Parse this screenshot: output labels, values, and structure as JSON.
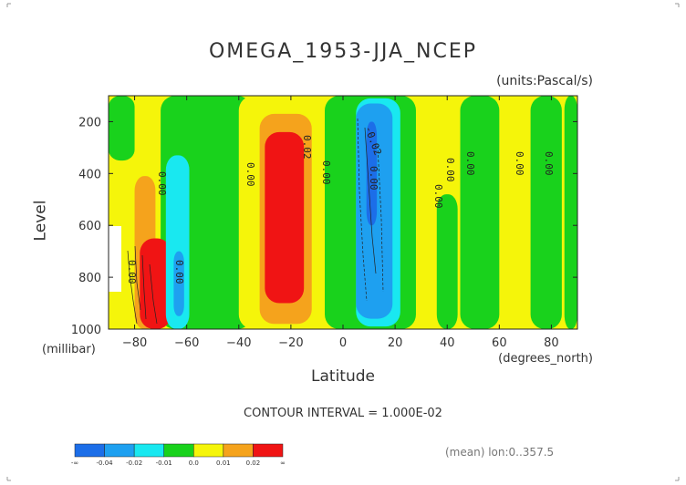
{
  "title": "OMEGA_1953-JJA_NCEP",
  "units_label": "(units:Pascal/s)",
  "contour_interval": "CONTOUR INTERVAL = 1.000E-02",
  "meta": "(mean) lon:0..357.5",
  "colors": {
    "n04": "#1c6ee8",
    "n02": "#1ea0f0",
    "n01": "#19e8f0",
    "zero": "#19d21c",
    "p00": "#f5f50a",
    "p01": "#f5a31c",
    "p02": "#f01414"
  },
  "colorbar": {
    "labels": [
      "-∞",
      "-0.04",
      "-0.02",
      "-0.01",
      "0.0",
      "0.01",
      "0.02",
      "∞"
    ],
    "color_keys": [
      "n04",
      "n02",
      "n01",
      "zero",
      "p00",
      "p01",
      "p02"
    ]
  },
  "contour_labels": [
    "0.00",
    "0.00",
    "0.00",
    "0.02",
    "0.00",
    "-0.02",
    "0.00",
    "0.00",
    "0.00",
    "0.00",
    "0.00",
    "0.00",
    "0.00"
  ],
  "chart_data": {
    "type": "heatmap",
    "title": "OMEGA_1953-JJA_NCEP",
    "units": "(units:Pascal/s)",
    "xlabel": "Latitude",
    "xlabel_unit": "(degrees_north)",
    "ylabel": "Level",
    "ylabel_unit": "(millibar)",
    "xlim": [
      -90,
      90
    ],
    "ylim": [
      1000,
      100
    ],
    "xticks": [
      -80,
      -60,
      -40,
      -20,
      0,
      20,
      40,
      60,
      80
    ],
    "yticks": [
      200,
      400,
      600,
      800,
      1000
    ],
    "background_level": "p00",
    "regions": [
      {
        "level": "zero",
        "lat_min": -90,
        "lat_max": -80,
        "p_top": 100,
        "p_bottom": 350
      },
      {
        "level": "zero",
        "lat_min": -70,
        "lat_max": -35,
        "p_top": 100,
        "p_bottom": 1000
      },
      {
        "level": "zero",
        "lat_min": -7,
        "lat_max": 28,
        "p_top": 100,
        "p_bottom": 1000
      },
      {
        "level": "zero",
        "lat_min": 45,
        "lat_max": 60,
        "p_top": 100,
        "p_bottom": 1000
      },
      {
        "level": "zero",
        "lat_min": 72,
        "lat_max": 84,
        "p_top": 100,
        "p_bottom": 1000
      },
      {
        "level": "zero",
        "lat_min": 85,
        "lat_max": 90,
        "p_top": 100,
        "p_bottom": 1000
      },
      {
        "level": "zero",
        "lat_min": 36,
        "lat_max": 44,
        "p_top": 480,
        "p_bottom": 1000
      },
      {
        "level": "p00",
        "lat_min": -40,
        "lat_max": -8,
        "p_top": 100,
        "p_bottom": 1000
      },
      {
        "level": "p01",
        "lat_min": -32,
        "lat_max": -12,
        "p_top": 170,
        "p_bottom": 980
      },
      {
        "level": "p02",
        "lat_min": -30,
        "lat_max": -15,
        "p_top": 240,
        "p_bottom": 900
      },
      {
        "level": "p01",
        "lat_min": -80,
        "lat_max": -72,
        "p_top": 410,
        "p_bottom": 1000
      },
      {
        "level": "p02",
        "lat_min": -78,
        "lat_max": -66,
        "p_top": 650,
        "p_bottom": 1000
      },
      {
        "level": "n01",
        "lat_min": -68,
        "lat_max": -59,
        "p_top": 330,
        "p_bottom": 1000
      },
      {
        "level": "n02",
        "lat_min": -65,
        "lat_max": -61,
        "p_top": 700,
        "p_bottom": 950
      },
      {
        "level": "n01",
        "lat_min": 5,
        "lat_max": 22,
        "p_top": 110,
        "p_bottom": 990
      },
      {
        "level": "n02",
        "lat_min": 5,
        "lat_max": 19,
        "p_top": 130,
        "p_bottom": 960
      },
      {
        "level": "n04",
        "lat_min": 9,
        "lat_max": 13,
        "p_top": 200,
        "p_bottom": 600
      }
    ]
  }
}
